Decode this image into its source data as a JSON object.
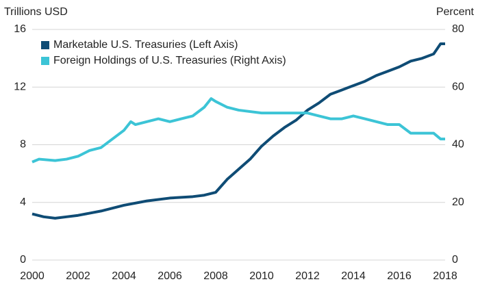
{
  "chart_data": {
    "type": "line",
    "y_axis_label": "Trillions USD",
    "y2_axis_label": "Percent",
    "xlim": [
      2000,
      2018
    ],
    "xticks": [
      2000,
      2002,
      2004,
      2006,
      2008,
      2010,
      2012,
      2014,
      2016,
      2018
    ],
    "ylim": [
      0,
      16
    ],
    "yticks": [
      0,
      4,
      8,
      12,
      16
    ],
    "y2lim": [
      0,
      80
    ],
    "y2ticks": [
      0,
      20,
      40,
      60,
      80
    ],
    "grid": true,
    "legend": "top-left",
    "series": [
      {
        "name": "Marketable U.S. Treasuries (Left Axis)",
        "color": "#0f4c75",
        "axis": "y",
        "x": [
          2000,
          2000.5,
          2001,
          2001.5,
          2002,
          2003,
          2004,
          2005,
          2006,
          2007,
          2007.5,
          2008,
          2008.5,
          2009,
          2009.5,
          2010,
          2010.5,
          2011,
          2011.5,
          2012,
          2012.5,
          2013,
          2013.5,
          2014,
          2014.5,
          2015,
          2015.5,
          2016,
          2016.5,
          2017,
          2017.5,
          2017.8,
          2018
        ],
        "values": [
          3.2,
          3.0,
          2.9,
          3.0,
          3.1,
          3.4,
          3.8,
          4.1,
          4.3,
          4.4,
          4.5,
          4.7,
          5.6,
          6.3,
          7.0,
          7.9,
          8.6,
          9.2,
          9.7,
          10.4,
          10.9,
          11.5,
          11.8,
          12.1,
          12.4,
          12.8,
          13.1,
          13.4,
          13.8,
          14.0,
          14.3,
          15.0,
          15.0
        ]
      },
      {
        "name": "Foreign Holdings of U.S. Treasuries (Right Axis)",
        "color": "#3cc4d6",
        "axis": "y2",
        "x": [
          2000,
          2000.3,
          2001,
          2001.5,
          2002,
          2002.5,
          2003,
          2003.5,
          2004,
          2004.3,
          2004.5,
          2005,
          2005.5,
          2006,
          2006.5,
          2007,
          2007.5,
          2007.8,
          2008,
          2008.5,
          2009,
          2010,
          2011,
          2012,
          2012.5,
          2013,
          2013.5,
          2014,
          2014.5,
          2015,
          2015.5,
          2016,
          2016.5,
          2017,
          2017.5,
          2017.8,
          2018
        ],
        "values": [
          34,
          35,
          34.5,
          35,
          36,
          38,
          39,
          42,
          45,
          48,
          47,
          48,
          49,
          48,
          49,
          50,
          53,
          56,
          55,
          53,
          52,
          51,
          51,
          51,
          50,
          49,
          49,
          50,
          49,
          48,
          47,
          47,
          44,
          44,
          44,
          42,
          42
        ]
      }
    ]
  }
}
